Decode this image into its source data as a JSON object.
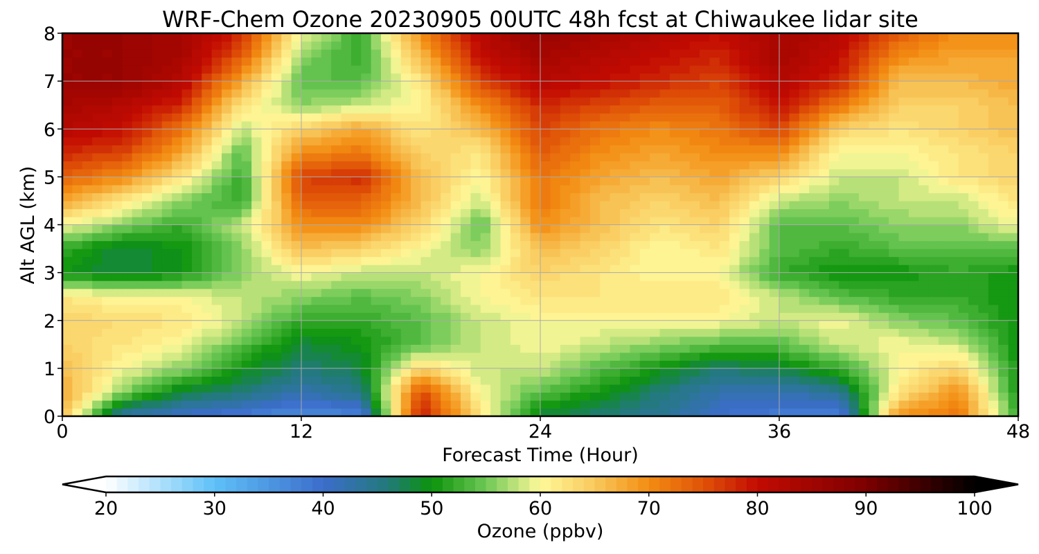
{
  "chart_data": {
    "type": "heatmap",
    "title": "WRF-Chem Ozone  20230905 00UTC 48h fcst at Chiwaukee lidar site",
    "xlabel": "Forecast Time (Hour)",
    "ylabel": "Alt AGL (km)",
    "xlim": [
      0,
      48
    ],
    "ylim": [
      0,
      8
    ],
    "x_ticks": [
      "0",
      "12",
      "24",
      "36",
      "48"
    ],
    "y_ticks": [
      "0",
      "1",
      "2",
      "3",
      "4",
      "5",
      "6",
      "7",
      "8"
    ],
    "grid": true,
    "x": [
      0,
      3,
      6,
      9,
      12,
      15,
      18,
      21,
      24,
      27,
      30,
      33,
      36,
      39,
      42,
      45,
      48
    ],
    "y": [
      0,
      0.5,
      1,
      1.5,
      2,
      2.5,
      3,
      3.5,
      4,
      4.5,
      5,
      5.5,
      6,
      6.5,
      7,
      7.5,
      8
    ],
    "z": [
      [
        66,
        42,
        40,
        38,
        36,
        37,
        80,
        62,
        48,
        46,
        44,
        40,
        38,
        37,
        70,
        72,
        52
      ],
      [
        68,
        56,
        48,
        46,
        42,
        45,
        76,
        60,
        54,
        50,
        46,
        42,
        42,
        44,
        62,
        70,
        50
      ],
      [
        66,
        60,
        56,
        50,
        46,
        48,
        64,
        58,
        58,
        54,
        50,
        46,
        48,
        52,
        60,
        64,
        50
      ],
      [
        64,
        62,
        60,
        54,
        48,
        50,
        54,
        58,
        60,
        58,
        56,
        54,
        54,
        58,
        60,
        58,
        50
      ],
      [
        64,
        63,
        62,
        58,
        52,
        52,
        54,
        58,
        60,
        60,
        60,
        60,
        58,
        60,
        56,
        54,
        50
      ],
      [
        62,
        60,
        60,
        58,
        56,
        54,
        56,
        60,
        62,
        62,
        62,
        62,
        58,
        54,
        52,
        52,
        50
      ],
      [
        50,
        48,
        50,
        56,
        60,
        58,
        58,
        60,
        64,
        62,
        60,
        60,
        52,
        50,
        50,
        52,
        50
      ],
      [
        52,
        48,
        50,
        56,
        66,
        64,
        60,
        56,
        66,
        64,
        60,
        62,
        54,
        52,
        54,
        54,
        54
      ],
      [
        60,
        56,
        52,
        58,
        70,
        70,
        64,
        54,
        70,
        66,
        62,
        64,
        54,
        54,
        56,
        56,
        60
      ],
      [
        68,
        62,
        56,
        52,
        74,
        74,
        66,
        58,
        72,
        66,
        64,
        66,
        58,
        56,
        58,
        58,
        62
      ],
      [
        74,
        70,
        62,
        52,
        76,
        78,
        66,
        60,
        72,
        68,
        66,
        68,
        64,
        58,
        58,
        62,
        64
      ],
      [
        78,
        76,
        68,
        54,
        70,
        72,
        64,
        62,
        74,
        70,
        68,
        70,
        70,
        60,
        60,
        62,
        64
      ],
      [
        82,
        80,
        72,
        58,
        64,
        68,
        62,
        66,
        76,
        72,
        70,
        72,
        76,
        64,
        62,
        64,
        66
      ],
      [
        84,
        82,
        78,
        62,
        56,
        58,
        60,
        70,
        78,
        76,
        74,
        74,
        80,
        72,
        64,
        64,
        66
      ],
      [
        86,
        86,
        82,
        68,
        54,
        54,
        62,
        76,
        82,
        80,
        78,
        76,
        82,
        78,
        66,
        66,
        68
      ],
      [
        86,
        86,
        84,
        74,
        56,
        52,
        66,
        80,
        84,
        82,
        80,
        78,
        84,
        80,
        70,
        68,
        68
      ],
      [
        86,
        86,
        84,
        78,
        60,
        52,
        70,
        82,
        86,
        84,
        82,
        80,
        84,
        82,
        74,
        70,
        70
      ]
    ],
    "colorbar": {
      "label": "Ozone  (ppbv)",
      "min": 20,
      "max": 100,
      "step": 1,
      "extend": "both",
      "ticks": [
        "20",
        "30",
        "40",
        "50",
        "60",
        "70",
        "80",
        "90",
        "100"
      ],
      "color_stops": [
        [
          20,
          "#ffffff"
        ],
        [
          30,
          "#5ec1f8"
        ],
        [
          40,
          "#3c6dcb"
        ],
        [
          46,
          "#227a7a"
        ],
        [
          50,
          "#0b930b"
        ],
        [
          55,
          "#6ec855"
        ],
        [
          60,
          "#fff99a"
        ],
        [
          65,
          "#f9c95c"
        ],
        [
          70,
          "#f38d12"
        ],
        [
          75,
          "#e05208"
        ],
        [
          80,
          "#c20b02"
        ],
        [
          90,
          "#7c0000"
        ],
        [
          100,
          "#000000"
        ]
      ]
    }
  }
}
